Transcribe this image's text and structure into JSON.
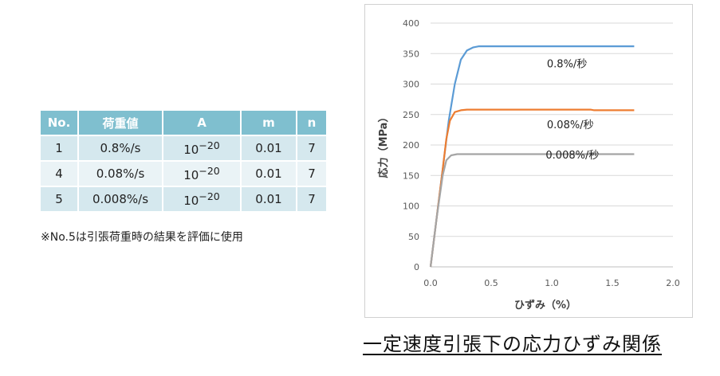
{
  "table": {
    "headers": [
      "No.",
      "荷重値",
      "A",
      "m",
      "n"
    ],
    "rows": [
      {
        "no": "1",
        "load": "0.8%/s",
        "a_base": "10",
        "a_exp": "−20",
        "m": "0.01",
        "n": "7"
      },
      {
        "no": "4",
        "load": "0.08%/s",
        "a_base": "10",
        "a_exp": "−20",
        "m": "0.01",
        "n": "7"
      },
      {
        "no": "5",
        "load": "0.008%/s",
        "a_base": "10",
        "a_exp": "−20",
        "m": "0.01",
        "n": "7"
      }
    ]
  },
  "note": "※No.5は引張荷重時の結果を評価に使用",
  "caption": "一定速度引張下の応力ひずみ関係",
  "chart_data": {
    "type": "line",
    "title": "",
    "xlabel": "ひずみ（%）",
    "ylabel": "応力（MPa）",
    "xlim": [
      0,
      2.0
    ],
    "ylim": [
      0,
      400
    ],
    "x_ticks": [
      0.0,
      0.5,
      1.0,
      1.5,
      2.0
    ],
    "x_tick_labels": [
      "0.0",
      "0.5",
      "1.0",
      "1.5",
      "2.0"
    ],
    "y_ticks": [
      0,
      50,
      100,
      150,
      200,
      250,
      300,
      350,
      400
    ],
    "y_tick_labels": [
      "0",
      "50",
      "100",
      "150",
      "200",
      "250",
      "300",
      "350",
      "400"
    ],
    "grid": "horizontal",
    "series": [
      {
        "name": "0.8%/秒",
        "color": "#5b9bd5",
        "points": [
          [
            0,
            0
          ],
          [
            0.05,
            80
          ],
          [
            0.1,
            160
          ],
          [
            0.15,
            240
          ],
          [
            0.2,
            300
          ],
          [
            0.25,
            340
          ],
          [
            0.3,
            355
          ],
          [
            0.35,
            360
          ],
          [
            0.4,
            362
          ],
          [
            1.0,
            362
          ],
          [
            1.68,
            362
          ]
        ]
      },
      {
        "name": "0.08%/秒",
        "color": "#ed7d31",
        "points": [
          [
            0,
            0
          ],
          [
            0.05,
            80
          ],
          [
            0.1,
            160
          ],
          [
            0.13,
            210
          ],
          [
            0.16,
            240
          ],
          [
            0.2,
            254
          ],
          [
            0.25,
            257
          ],
          [
            0.3,
            258
          ],
          [
            1.0,
            258
          ],
          [
            1.32,
            258
          ],
          [
            1.35,
            257
          ],
          [
            1.68,
            257
          ]
        ]
      },
      {
        "name": "0.008%/秒",
        "color": "#a5a5a5",
        "points": [
          [
            0,
            0
          ],
          [
            0.05,
            80
          ],
          [
            0.1,
            150
          ],
          [
            0.13,
            175
          ],
          [
            0.17,
            183
          ],
          [
            0.22,
            185
          ],
          [
            1.0,
            185
          ],
          [
            1.68,
            185
          ]
        ]
      }
    ]
  }
}
